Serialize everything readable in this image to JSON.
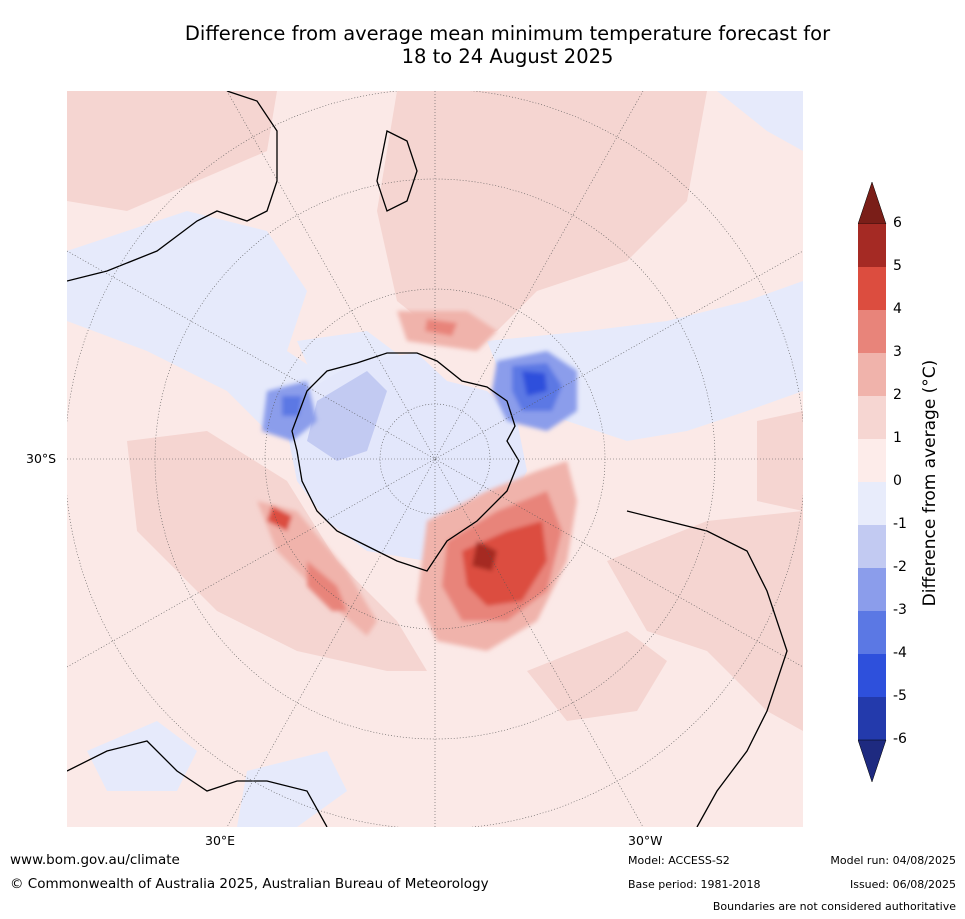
{
  "title_line1": "Difference from average mean minimum temperature forecast for",
  "title_line2": "18 to 24 August 2025",
  "map": {
    "lat_label": "30°S",
    "lon_labels": {
      "east": "30°E",
      "west": "30°W"
    }
  },
  "colorbar": {
    "label": "Difference from average (°C)",
    "ticks": [
      "6",
      "5",
      "4",
      "3",
      "2",
      "1",
      "0",
      "-1",
      "-2",
      "-3",
      "-4",
      "-5",
      "-6"
    ],
    "colors_top_to_bottom": [
      "#a52a24",
      "#dc4d3f",
      "#e8847a",
      "#f0b3ab",
      "#f6d6d2",
      "#fdecea",
      "#e8ecfb",
      "#c2caf2",
      "#8b9deb",
      "#5b78e4",
      "#2e50dc",
      "#233aac"
    ],
    "over_color": "#7a1e18",
    "under_color": "#1e2a80"
  },
  "footer": {
    "website": "www.bom.gov.au/climate",
    "copyright": "© Commonwealth of Australia 2025, Australian Bureau of Meteorology",
    "model": "Model: ACCESS-S2",
    "base_period": "Base period: 1981-2018",
    "model_run": "Model run: 04/08/2025",
    "issued": "Issued: 06/08/2025",
    "disclaimer": "Boundaries are not considered authoritative"
  }
}
